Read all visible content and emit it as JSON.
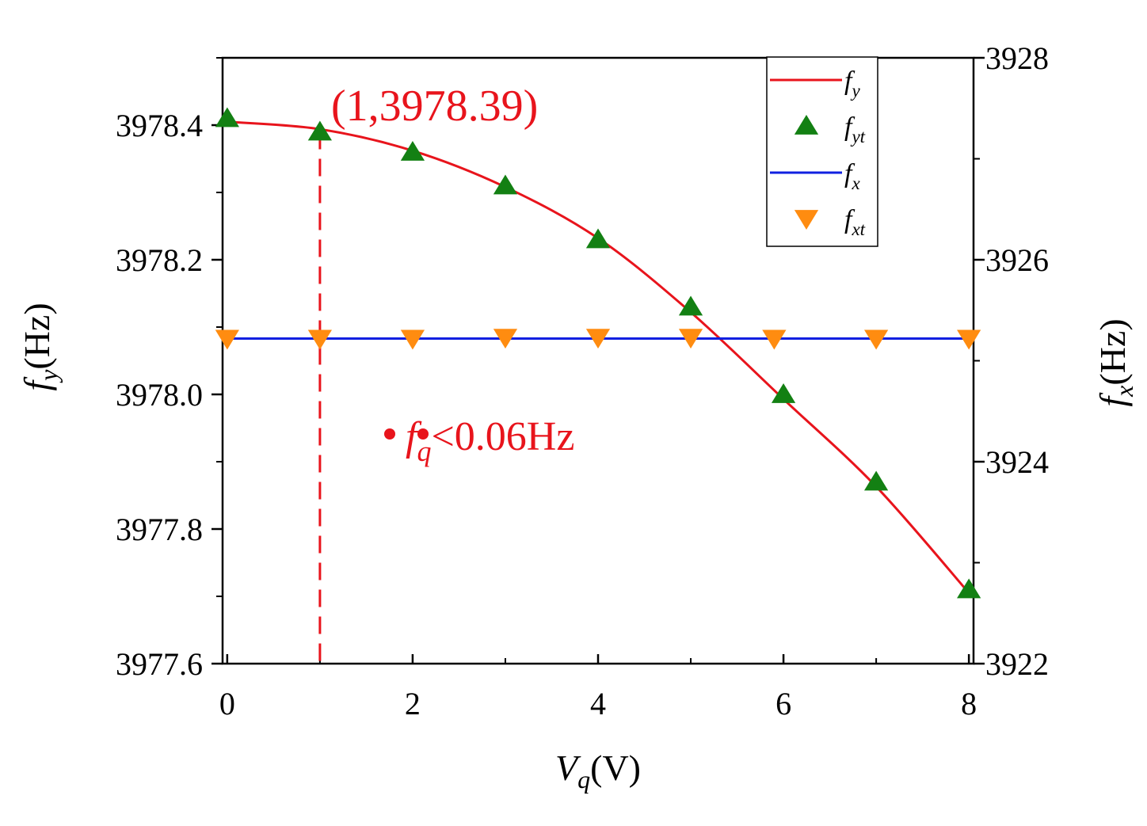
{
  "chart_data": {
    "type": "line",
    "xlabel": "V",
    "xlabel_sub": "q",
    "xlabel_unit": "(V)",
    "ylabel": "f",
    "ylabel_sub": "y",
    "ylabel_unit": "(Hz)",
    "y2label": "f",
    "y2label_sub": "x",
    "y2label_unit": "(Hz)",
    "xlim": [
      -0.05,
      8.05
    ],
    "ylim": [
      3977.6,
      3978.5
    ],
    "y2lim": [
      3922,
      3928
    ],
    "x_ticks": [
      "0",
      "2",
      "4",
      "6",
      "8"
    ],
    "y_ticks": [
      "3977.6",
      "3977.8",
      "3978.0",
      "3978.2",
      "3978.4"
    ],
    "y2_ticks": [
      "3922",
      "3924",
      "3926",
      "3928"
    ],
    "legend_position": "top-right",
    "series": [
      {
        "name": "f",
        "name_sub": "y",
        "kind": "line",
        "axis": "left",
        "color": "#e8141c",
        "x": [
          0,
          1,
          2,
          3,
          4,
          5,
          6,
          7,
          8
        ],
        "y": [
          3978.405,
          3978.394,
          3978.362,
          3978.308,
          3978.232,
          3978.122,
          3977.993,
          3977.863,
          3977.705
        ]
      },
      {
        "name": "f",
        "name_sub": "yt",
        "kind": "marker",
        "marker": "triangle-up",
        "axis": "left",
        "color": "#138013",
        "x": [
          0,
          1,
          2,
          3,
          4,
          5,
          6,
          7,
          8
        ],
        "y": [
          3978.41,
          3978.39,
          3978.36,
          3978.31,
          3978.23,
          3978.13,
          3978.0,
          3977.87,
          3977.71
        ]
      },
      {
        "name": "f",
        "name_sub": "x",
        "kind": "line",
        "axis": "right",
        "color": "#1020e0",
        "x": [
          0,
          8
        ],
        "y": [
          3925.22,
          3925.22
        ]
      },
      {
        "name": "f",
        "name_sub": "xt",
        "kind": "marker",
        "marker": "triangle-down",
        "axis": "right",
        "color": "#ff8c10",
        "x": [
          0,
          1,
          2,
          3,
          4,
          5,
          5.9,
          7,
          8
        ],
        "y": [
          3925.22,
          3925.22,
          3925.22,
          3925.23,
          3925.23,
          3925.23,
          3925.22,
          3925.22,
          3925.22
        ]
      }
    ],
    "annotations": {
      "point_label": "(1,3978.39)",
      "point": [
        1,
        3978.39
      ],
      "note_prefix": "f",
      "note_sub": "q",
      "note_text": "<0.06Hz",
      "color": "#e8141c"
    }
  }
}
